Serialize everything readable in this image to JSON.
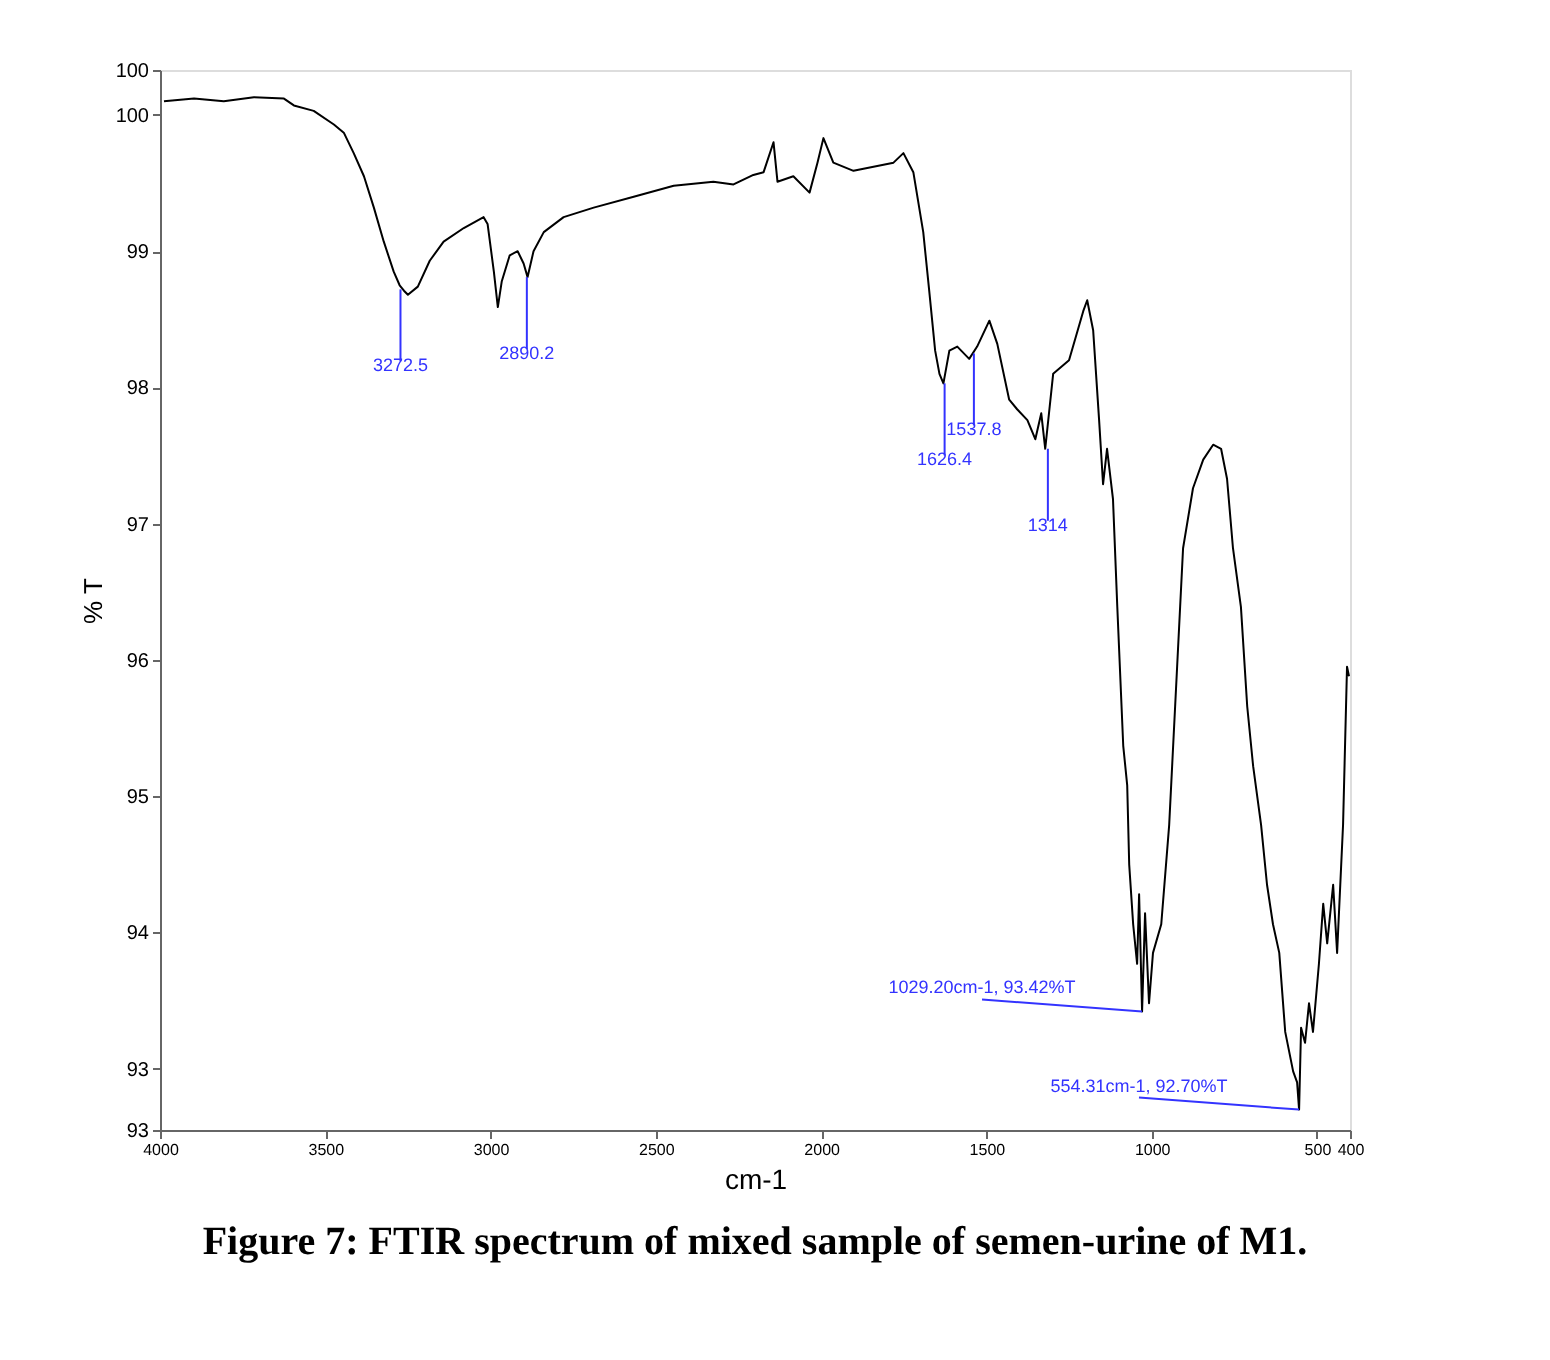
{
  "chart_data": {
    "type": "line",
    "title": "Figure 7: FTIR spectrum of mixed sample of semen-urine of M1.",
    "xlabel": "cm-1",
    "ylabel": "% T",
    "xlim": [
      4000,
      400
    ],
    "xticks": [
      4000,
      3500,
      3000,
      2500,
      2000,
      1500,
      1000,
      500,
      400
    ],
    "ylim": [
      92.55,
      100.33
    ],
    "yticks": [
      {
        "value": 100.33,
        "label": "100"
      },
      100,
      99,
      98,
      97,
      96,
      95,
      94,
      93,
      {
        "value": 92.55,
        "label": "93"
      }
    ],
    "grid": false,
    "marker": "none",
    "line_style": "solid",
    "series": [
      {
        "color": "#000000",
        "x": [
          3988,
          3897,
          3807,
          3716,
          3625,
          3595,
          3535,
          3474,
          3444,
          3414,
          3383,
          3353,
          3323,
          3293,
          3275,
          3262,
          3250,
          3220,
          3184,
          3142,
          3081,
          3021,
          3009,
          2990,
          2978,
          2966,
          2942,
          2918,
          2900,
          2888,
          2870,
          2839,
          2779,
          2688,
          2567,
          2446,
          2326,
          2265,
          2205,
          2174,
          2144,
          2132,
          2084,
          2035,
          2011,
          1993,
          1963,
          1902,
          1781,
          1751,
          1721,
          1691,
          1673,
          1655,
          1642,
          1630,
          1612,
          1588,
          1552,
          1528,
          1491,
          1467,
          1431,
          1407,
          1376,
          1352,
          1334,
          1322,
          1298,
          1250,
          1207,
          1195,
          1177,
          1159,
          1147,
          1135,
          1117,
          1104,
          1086,
          1074,
          1068,
          1056,
          1044,
          1038,
          1029,
          1020,
          1008,
          996,
          971,
          947,
          923,
          905,
          875,
          844,
          814,
          790,
          772,
          754,
          730,
          711,
          693,
          669,
          651,
          633,
          614,
          596,
          572,
          560,
          554,
          548,
          536,
          524,
          512,
          494,
          481,
          469,
          451,
          439,
          421,
          409,
          403
        ],
        "values": [
          100.1,
          100.12,
          100.1,
          100.13,
          100.12,
          100.07,
          100.03,
          99.93,
          99.87,
          99.72,
          99.55,
          99.32,
          99.07,
          98.85,
          98.75,
          98.71,
          98.68,
          98.74,
          98.93,
          99.07,
          99.17,
          99.25,
          99.2,
          98.85,
          98.59,
          98.78,
          98.97,
          99.0,
          98.91,
          98.81,
          99.0,
          99.14,
          99.25,
          99.32,
          99.4,
          99.48,
          99.51,
          99.49,
          99.56,
          99.58,
          99.8,
          99.51,
          99.55,
          99.43,
          99.65,
          99.83,
          99.65,
          99.59,
          99.65,
          99.72,
          99.58,
          99.14,
          98.71,
          98.27,
          98.1,
          98.03,
          98.27,
          98.3,
          98.21,
          98.3,
          98.49,
          98.32,
          97.91,
          97.84,
          97.76,
          97.62,
          97.81,
          97.55,
          98.1,
          98.2,
          98.56,
          98.64,
          98.42,
          97.76,
          97.29,
          97.55,
          97.18,
          96.39,
          95.37,
          95.08,
          94.5,
          94.06,
          93.77,
          94.28,
          93.42,
          94.14,
          93.48,
          93.85,
          94.06,
          94.79,
          95.95,
          96.82,
          97.26,
          97.47,
          97.58,
          97.55,
          97.33,
          96.82,
          96.39,
          95.66,
          95.22,
          94.79,
          94.35,
          94.06,
          93.85,
          93.27,
          92.98,
          92.9,
          92.7,
          93.3,
          93.19,
          93.48,
          93.27,
          93.77,
          94.21,
          93.92,
          94.35,
          93.85,
          94.79,
          95.95,
          95.88
        ]
      }
    ],
    "annotations": [
      {
        "text": "3272.5",
        "x": 3272.5,
        "y": 98.72
      },
      {
        "text": "2890.2",
        "x": 2890.2,
        "y": 98.81
      },
      {
        "text": "1626.4",
        "x": 1626.4,
        "y": 98.03
      },
      {
        "text": "1537.8",
        "x": 1537.8,
        "y": 98.25
      },
      {
        "text": "1314",
        "x": 1314,
        "y": 97.55
      },
      {
        "text": "1029.20cm-1, 93.42%T",
        "x": 1029.2,
        "y": 93.42
      },
      {
        "text": "554.31cm-1, 92.70%T",
        "x": 554.31,
        "y": 92.7
      }
    ]
  }
}
